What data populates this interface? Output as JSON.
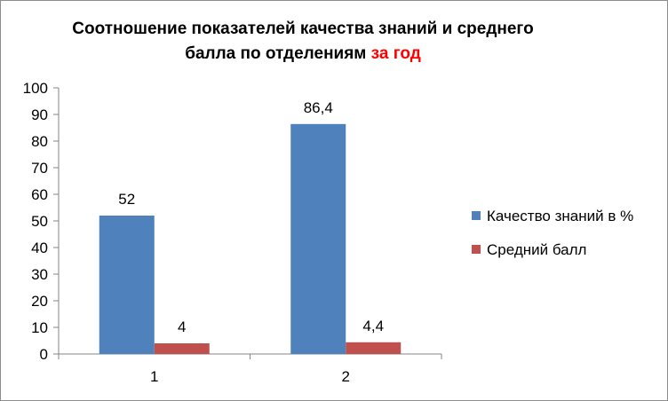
{
  "chart_data": {
    "type": "bar",
    "title": "Соотношение показателей качества знаний и среднего балла по отделениям за год",
    "title_line1": "Соотношение показателей качества знаний и среднего",
    "title_line2_main": "балла по отделениям ",
    "title_line2_accent": "за год",
    "accent_color": "#ff0000",
    "categories": [
      "1",
      "2"
    ],
    "series": [
      {
        "name": "Качество знаний в %",
        "values": [
          52,
          86.4
        ],
        "labels": [
          "52",
          "86,4"
        ],
        "color": "#4f81bd"
      },
      {
        "name": "Средний балл",
        "values": [
          4,
          4.4
        ],
        "labels": [
          "4",
          "4,4"
        ],
        "color": "#c0504d"
      }
    ],
    "ylim": [
      0,
      100
    ],
    "yticks": [
      0,
      10,
      20,
      30,
      40,
      50,
      60,
      70,
      80,
      90,
      100
    ],
    "xlabel": "",
    "ylabel": "",
    "grid": false,
    "legend": "right"
  }
}
